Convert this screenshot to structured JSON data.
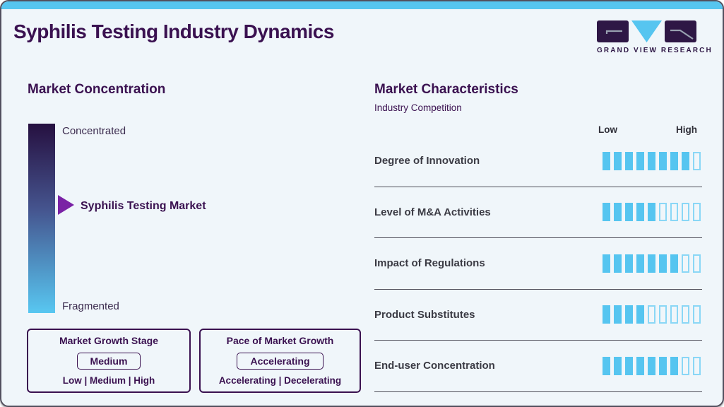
{
  "header": {
    "title": "Syphilis Testing Industry Dynamics",
    "logo": {
      "brand": "GRAND VIEW RESEARCH",
      "mark_letters": [
        "G",
        "V",
        "R"
      ]
    }
  },
  "market_concentration": {
    "heading": "Market Concentration",
    "scale_top_label": "Concentrated",
    "scale_bottom_label": "Fragmented",
    "marker_label": "Syphilis Testing Market",
    "marker_position_pct_from_top": 43,
    "growth_stage_box": {
      "title": "Market Growth Stage",
      "selected": "Medium",
      "options_line": "Low | Medium | High"
    },
    "growth_pace_box": {
      "title": "Pace of Market Growth",
      "selected": "Accelerating",
      "options_line": "Accelerating | Decelerating"
    }
  },
  "market_characteristics": {
    "heading": "Market Characteristics",
    "subtitle": "Industry Competition",
    "scale_low_label": "Low",
    "scale_high_label": "High",
    "segments_total": 9,
    "rows": [
      {
        "label": "Degree of Innovation",
        "filled": 8
      },
      {
        "label": "Level of M&A Activities",
        "filled": 5
      },
      {
        "label": "Impact of Regulations",
        "filled": 7
      },
      {
        "label": "Product Substitutes",
        "filled": 4
      },
      {
        "label": "End-user Concentration",
        "filled": 7
      }
    ]
  },
  "colors": {
    "accent_blue": "#56C5F0",
    "accent_blue_light": "#8AD7F6",
    "brand_purple": "#3A1150",
    "brand_purple_dark": "#2E1745",
    "arrow_purple": "#7A22A5",
    "text_dark": "#3B3B44",
    "gradient_top": "#261040",
    "gradient_mid": "#45548E",
    "gradient_bottom": "#58C7F1",
    "divider": "#4E4E58",
    "page_bg": "#F0F6FA"
  },
  "chart_data": [
    {
      "type": "bar",
      "title": "Market Characteristics",
      "subtitle": "Industry Competition",
      "categories": [
        "Degree of Innovation",
        "Level of M&A Activities",
        "Impact of Regulations",
        "Product Substitutes",
        "End-user Concentration"
      ],
      "values": [
        8,
        5,
        7,
        4,
        7
      ],
      "ylim": [
        0,
        9
      ],
      "scale_labels": [
        "Low",
        "High"
      ],
      "notes": "Each value = number of filled segments out of 9 total segments per row"
    },
    {
      "type": "scale",
      "title": "Market Concentration",
      "axis_labels": [
        "Concentrated",
        "Fragmented"
      ],
      "marker": {
        "label": "Syphilis Testing Market",
        "position_pct_from_top": 43
      },
      "callouts": [
        {
          "title": "Market Growth Stage",
          "value": "Medium",
          "options": "Low | Medium | High"
        },
        {
          "title": "Pace of Market Growth",
          "value": "Accelerating",
          "options": "Accelerating | Decelerating"
        }
      ]
    }
  ]
}
